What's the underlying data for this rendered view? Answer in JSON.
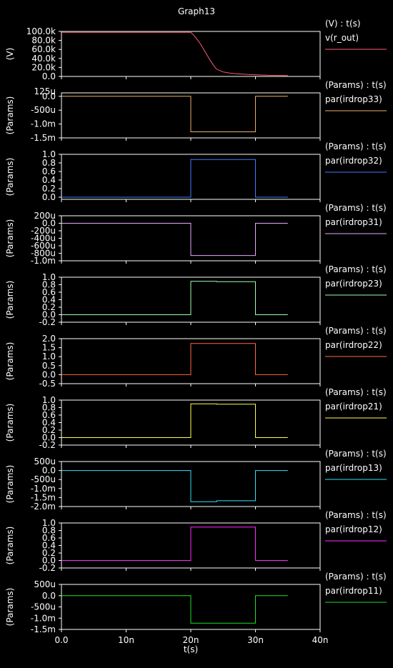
{
  "window": {
    "title": "Graph13"
  },
  "x_axis": {
    "label": "t(s)",
    "ticks": [
      0,
      10,
      20,
      30,
      40
    ],
    "tick_labels": [
      "0.0",
      "10n",
      "20n",
      "30n",
      "40n"
    ],
    "xlim": [
      0,
      40
    ]
  },
  "chart_data": [
    {
      "type": "line",
      "header": "(V) : t(s)",
      "series_name": "v(r_out)",
      "ylabel": "(V)",
      "color": "#ff5a78",
      "ylim": [
        0,
        100000
      ],
      "yticks": [
        0,
        20000,
        40000,
        60000,
        80000,
        100000
      ],
      "ytick_labels": [
        "0.0",
        "20.0k",
        "40.0k",
        "60.0k",
        "80.0k",
        "100.0k"
      ],
      "x": [
        0,
        20,
        20.5,
        21,
        21.5,
        22,
        22.5,
        23,
        23.5,
        24,
        25,
        26,
        27,
        28,
        30,
        32,
        35
      ],
      "y": [
        98000,
        98000,
        91000,
        82000,
        72000,
        60000,
        48000,
        36000,
        25000,
        16000,
        10000,
        7500,
        6000,
        5000,
        3500,
        2500,
        2000
      ]
    },
    {
      "type": "line",
      "header": "(Params) : t(s)",
      "series_name": "par(irdrop33)",
      "ylabel": "(Params)",
      "color": "#e8b060",
      "ylim": [
        -1.5,
        0.125
      ],
      "yticks": [
        -1.5,
        -1.0,
        -0.5,
        0.0
      ],
      "ytick_labels": [
        "-1.5m",
        "-1.0m",
        "-500u",
        "0.0"
      ],
      "extra_top_label": "125u",
      "x": [
        0,
        20,
        20,
        30,
        30,
        35
      ],
      "y": [
        0,
        0,
        -1.28,
        -1.28,
        0,
        0
      ]
    },
    {
      "type": "line",
      "header": "(Params) : t(s)",
      "series_name": "par(irdrop32)",
      "ylabel": "(Params)",
      "color": "#3b7fff",
      "ylim": [
        -0.05,
        1.0
      ],
      "yticks": [
        0,
        0.2,
        0.4,
        0.6,
        0.8,
        1.0
      ],
      "ytick_labels": [
        "0.0",
        "0.2",
        "0.4",
        "0.6",
        "0.8",
        "1.0"
      ],
      "x": [
        0,
        20,
        20,
        30,
        30,
        35
      ],
      "y": [
        0,
        0,
        0.88,
        0.88,
        0,
        0
      ]
    },
    {
      "type": "line",
      "header": "(Params) : t(s)",
      "series_name": "par(irdrop31)",
      "ylabel": "(Params)",
      "color": "#e8a8ff",
      "ylim": [
        -1000,
        200
      ],
      "yticks": [
        -1000,
        -800,
        -600,
        -400,
        -200,
        0,
        200
      ],
      "ytick_labels": [
        "-1.0m",
        "-800u",
        "-600u",
        "-400u",
        "-200u",
        "0.0",
        "200u"
      ],
      "x": [
        0,
        20,
        20,
        30,
        30,
        35
      ],
      "y": [
        0,
        0,
        -860,
        -860,
        0,
        0
      ]
    },
    {
      "type": "line",
      "header": "(Params) : t(s)",
      "series_name": "par(irdrop23)",
      "ylabel": "(Params)",
      "color": "#9dffb0",
      "ylim": [
        -0.2,
        1.0
      ],
      "yticks": [
        -0.2,
        0,
        0.2,
        0.4,
        0.6,
        0.8,
        1.0
      ],
      "ytick_labels": [
        "-0.2",
        "0.0",
        "0.2",
        "0.4",
        "0.6",
        "0.8",
        "1.0"
      ],
      "x": [
        0,
        20,
        20,
        24,
        24,
        30,
        30,
        35
      ],
      "y": [
        0,
        0,
        0.89,
        0.89,
        0.88,
        0.88,
        0,
        0
      ]
    },
    {
      "type": "line",
      "header": "(Params) : t(s)",
      "series_name": "par(irdrop22)",
      "ylabel": "(Params)",
      "color": "#ff6a3a",
      "ylim": [
        -0.5,
        2.0
      ],
      "yticks": [
        -0.5,
        0,
        0.5,
        1.0,
        1.5,
        2.0
      ],
      "ytick_labels": [
        "-0.5",
        "0.0",
        "0.5",
        "1.0",
        "1.5",
        "2.0"
      ],
      "x": [
        0,
        20,
        20,
        30,
        30,
        35
      ],
      "y": [
        0,
        0,
        1.73,
        1.73,
        0,
        0
      ]
    },
    {
      "type": "line",
      "header": "(Params) : t(s)",
      "series_name": "par(irdrop21)",
      "ylabel": "(Params)",
      "color": "#ffff50",
      "ylim": [
        -0.2,
        1.0
      ],
      "yticks": [
        -0.2,
        0,
        0.2,
        0.4,
        0.6,
        0.8,
        1.0
      ],
      "ytick_labels": [
        "-0.2",
        "0.0",
        "0.2",
        "0.4",
        "0.6",
        "0.8",
        "1.0"
      ],
      "x": [
        0,
        20,
        20,
        24,
        24,
        30,
        30,
        35
      ],
      "y": [
        0,
        0,
        0.9,
        0.9,
        0.89,
        0.89,
        0,
        0
      ]
    },
    {
      "type": "line",
      "header": "(Params) : t(s)",
      "series_name": "par(irdrop13)",
      "ylabel": "(Params)",
      "color": "#30e0ff",
      "ylim": [
        -2.0,
        0.5
      ],
      "yticks": [
        -2.0,
        -1.5,
        -1.0,
        -0.5,
        0.0,
        0.5
      ],
      "ytick_labels": [
        "-2.0m",
        "-1.5m",
        "-1.0m",
        "-500u",
        "0.0",
        "500u"
      ],
      "x": [
        0,
        20,
        20,
        24,
        24,
        30,
        30,
        35
      ],
      "y": [
        0,
        0,
        -1.73,
        -1.73,
        -1.68,
        -1.68,
        0,
        0
      ]
    },
    {
      "type": "line",
      "header": "(Params) : t(s)",
      "series_name": "par(irdrop12)",
      "ylabel": "(Params)",
      "color": "#ff2aff",
      "ylim": [
        -0.2,
        1.0
      ],
      "yticks": [
        -0.2,
        0,
        0.2,
        0.4,
        0.6,
        0.8,
        1.0
      ],
      "ytick_labels": [
        "-0.2",
        "0.0",
        "0.2",
        "0.4",
        "0.6",
        "0.8",
        "1.0"
      ],
      "x": [
        0,
        20,
        20,
        30,
        30,
        35
      ],
      "y": [
        0,
        0,
        0.89,
        0.89,
        0,
        0
      ]
    },
    {
      "type": "line",
      "header": "(Params) : t(s)",
      "series_name": "par(irdrop11)",
      "ylabel": "(Params)",
      "color": "#22dd22",
      "ylim": [
        -1.5,
        0.5
      ],
      "yticks": [
        -1.5,
        -1.0,
        -0.5,
        0.0,
        0.5
      ],
      "ytick_labels": [
        "-1.5m",
        "-1.0m",
        "-500u",
        "0.0",
        "500u"
      ],
      "x": [
        0,
        20,
        20,
        30,
        30,
        35
      ],
      "y": [
        0,
        0,
        -1.22,
        -1.22,
        0,
        0
      ]
    }
  ]
}
